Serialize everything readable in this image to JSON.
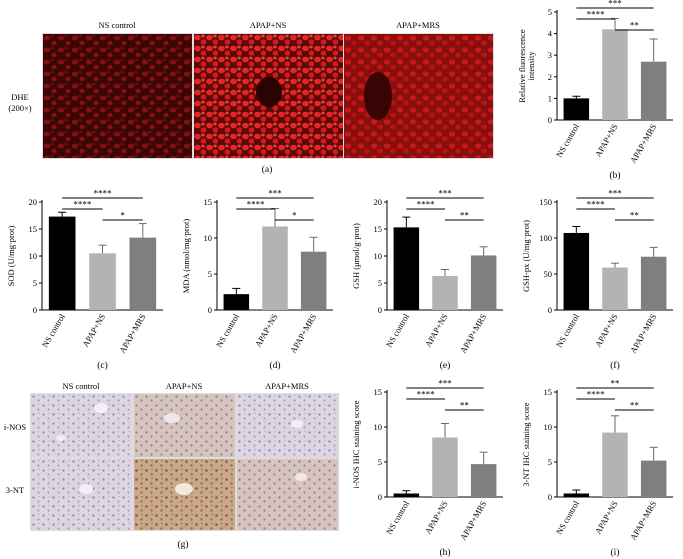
{
  "panels": {
    "a": {
      "label": "(a)",
      "row_label": [
        "DHE",
        "(200×)"
      ],
      "columns": [
        "NS control",
        "APAP+NS",
        "APAP+MRS"
      ]
    },
    "g": {
      "label": "(g)",
      "columns": [
        "NS control",
        "APAP+NS",
        "APAP+MRS"
      ],
      "rows": [
        "i-NOS",
        "3-NT"
      ]
    }
  },
  "chart_data": [
    {
      "id": "b",
      "label": "(b)",
      "type": "bar",
      "categories": [
        "NS control",
        "APAP+NS",
        "APAP+MRS"
      ],
      "values": [
        1.0,
        4.2,
        2.7
      ],
      "errors": [
        0.1,
        0.5,
        1.05
      ],
      "ylabel": [
        "Relative fluorescence",
        "intensity"
      ],
      "ylim": [
        0,
        5
      ],
      "yticks": [
        0,
        1,
        2,
        3,
        4,
        5
      ],
      "colors": [
        "#000000",
        "#b3b3b3",
        "#7f7f7f"
      ],
      "significance": [
        {
          "from": 0,
          "to": 2,
          "text": "***"
        },
        {
          "from": 0,
          "to": 1,
          "text": "****"
        },
        {
          "from": 1,
          "to": 2,
          "text": "**"
        }
      ]
    },
    {
      "id": "c",
      "label": "(c)",
      "type": "bar",
      "categories": [
        "NS control",
        "APAP+NS",
        "APAP+MRS"
      ],
      "values": [
        17.3,
        10.5,
        13.4
      ],
      "errors": [
        0.8,
        1.5,
        2.6
      ],
      "ylabel": [
        "SOD (U/mg·prot)"
      ],
      "ylim": [
        0,
        20
      ],
      "yticks": [
        0,
        5,
        10,
        15,
        20
      ],
      "colors": [
        "#000000",
        "#b3b3b3",
        "#7f7f7f"
      ],
      "significance": [
        {
          "from": 0,
          "to": 2,
          "text": "****"
        },
        {
          "from": 0,
          "to": 1,
          "text": "****"
        },
        {
          "from": 1,
          "to": 2,
          "text": "*"
        }
      ]
    },
    {
      "id": "d",
      "label": "(d)",
      "type": "bar",
      "categories": [
        "NS control",
        "APAP+NS",
        "APAP+MRS"
      ],
      "values": [
        2.2,
        11.6,
        8.1
      ],
      "errors": [
        0.8,
        2.5,
        2.0
      ],
      "ylabel": [
        "MDA (nmol/mg·prot)"
      ],
      "ylim": [
        0,
        15
      ],
      "yticks": [
        0,
        5,
        10,
        15
      ],
      "colors": [
        "#000000",
        "#b3b3b3",
        "#7f7f7f"
      ],
      "significance": [
        {
          "from": 0,
          "to": 2,
          "text": "***"
        },
        {
          "from": 0,
          "to": 1,
          "text": "****"
        },
        {
          "from": 1,
          "to": 2,
          "text": "*"
        }
      ]
    },
    {
      "id": "e",
      "label": "(e)",
      "type": "bar",
      "categories": [
        "NS control",
        "APAP+NS",
        "APAP+MRS"
      ],
      "values": [
        15.3,
        6.3,
        10.1
      ],
      "errors": [
        1.9,
        1.2,
        1.6
      ],
      "ylabel": [
        "GSH (μmol/g·prot)"
      ],
      "ylim": [
        0,
        20
      ],
      "yticks": [
        0,
        5,
        10,
        15,
        20
      ],
      "colors": [
        "#000000",
        "#b3b3b3",
        "#7f7f7f"
      ],
      "significance": [
        {
          "from": 0,
          "to": 2,
          "text": "***"
        },
        {
          "from": 0,
          "to": 1,
          "text": "****"
        },
        {
          "from": 1,
          "to": 2,
          "text": "**"
        }
      ]
    },
    {
      "id": "f",
      "label": "(f)",
      "type": "bar",
      "categories": [
        "NS control",
        "APAP+NS",
        "APAP+MRS"
      ],
      "values": [
        107,
        59,
        74
      ],
      "errors": [
        9,
        6,
        13
      ],
      "ylabel": [
        "GSH-px (U/mg·prot)"
      ],
      "ylim": [
        0,
        150
      ],
      "yticks": [
        0,
        50,
        100,
        150
      ],
      "colors": [
        "#000000",
        "#b3b3b3",
        "#7f7f7f"
      ],
      "significance": [
        {
          "from": 0,
          "to": 2,
          "text": "***"
        },
        {
          "from": 0,
          "to": 1,
          "text": "****"
        },
        {
          "from": 1,
          "to": 2,
          "text": "**"
        }
      ]
    },
    {
      "id": "h",
      "label": "(h)",
      "type": "bar",
      "categories": [
        "NS control",
        "APAP+NS",
        "APAP+MRS"
      ],
      "values": [
        0.5,
        8.5,
        4.7
      ],
      "errors": [
        0.4,
        2.0,
        1.7
      ],
      "ylabel": [
        "i-NOS IHC staining score"
      ],
      "ylim": [
        0,
        15
      ],
      "yticks": [
        0,
        5,
        10,
        15
      ],
      "colors": [
        "#000000",
        "#b3b3b3",
        "#7f7f7f"
      ],
      "significance": [
        {
          "from": 0,
          "to": 2,
          "text": "***"
        },
        {
          "from": 0,
          "to": 1,
          "text": "****"
        },
        {
          "from": 1,
          "to": 2,
          "text": "**"
        }
      ]
    },
    {
      "id": "i",
      "label": "(i)",
      "type": "bar",
      "categories": [
        "NS control",
        "APAP+NS",
        "APAP+MRS"
      ],
      "values": [
        0.5,
        9.2,
        5.2
      ],
      "errors": [
        0.5,
        2.4,
        1.9
      ],
      "ylabel": [
        "3-NT IHC staining score"
      ],
      "ylim": [
        0,
        15
      ],
      "yticks": [
        0,
        5,
        10,
        15
      ],
      "colors": [
        "#000000",
        "#b3b3b3",
        "#7f7f7f"
      ],
      "significance": [
        {
          "from": 0,
          "to": 2,
          "text": "**"
        },
        {
          "from": 0,
          "to": 1,
          "text": "****"
        },
        {
          "from": 1,
          "to": 2,
          "text": "**"
        }
      ]
    }
  ]
}
